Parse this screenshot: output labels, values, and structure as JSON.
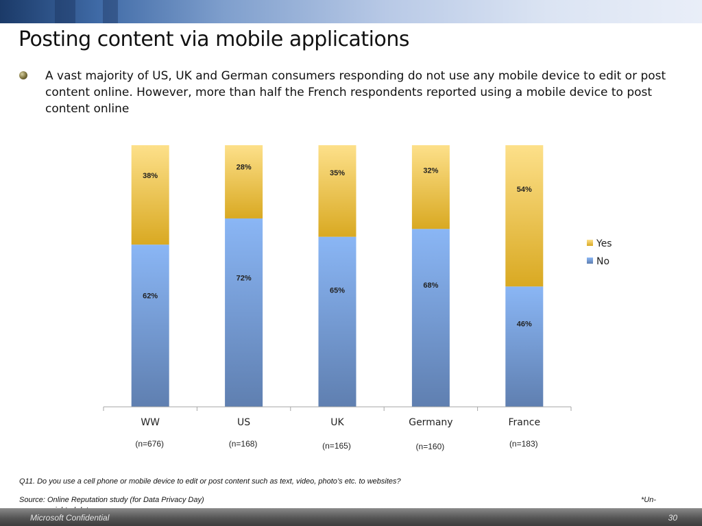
{
  "slide": {
    "title": "Posting content via mobile applications",
    "bullet": "A vast majority of US, UK and German consumers responding do not use any mobile device to edit or post content online. However, more than half the French respondents reported using a mobile device to post content online",
    "question": "Q11. Do you use a cell phone or mobile device to edit or post content such as text, video, photo’s etc. to websites?",
    "source": "Source: Online Reputation study (for Data Privacy Day)",
    "note_prefix": "*Un-",
    "note_suffix": "weighted data",
    "footer_left": "Microsoft Confidential",
    "page_number": "30"
  },
  "chart_data": {
    "type": "bar",
    "stacked": true,
    "percent_stacked": true,
    "categories": [
      "WW",
      "US",
      "UK",
      "Germany",
      "France"
    ],
    "sample_sizes": [
      "(n=676)",
      "(n=168)",
      "(n=165)",
      "(n=160)",
      "(n=183)"
    ],
    "series": [
      {
        "name": "No",
        "values": [
          62,
          72,
          65,
          68,
          46
        ],
        "labels": [
          "62%",
          "72%",
          "65%",
          "68%",
          "46%"
        ],
        "color": "#7fa6e0"
      },
      {
        "name": "Yes",
        "values": [
          38,
          28,
          35,
          32,
          54
        ],
        "labels": [
          "38%",
          "28%",
          "35%",
          "32%",
          "54%"
        ],
        "color": "#f2c94c"
      }
    ],
    "legend": [
      "Yes",
      "No"
    ],
    "legend_position": "right",
    "ylim": [
      0,
      100
    ],
    "grid": false
  }
}
